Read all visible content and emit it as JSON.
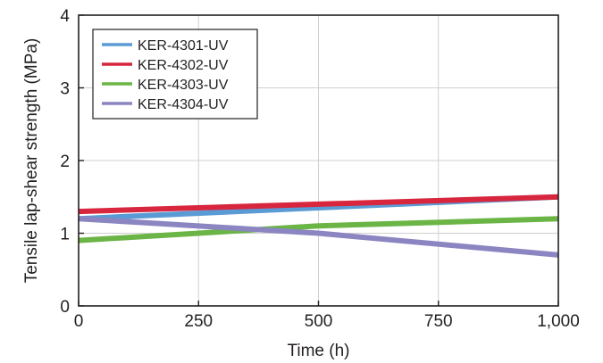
{
  "chart_data": {
    "type": "line",
    "xlabel": "Time (h)",
    "ylabel": "Tensile lap-shear strength (MPa)",
    "xlim": [
      0,
      1000
    ],
    "ylim": [
      0,
      4
    ],
    "xticks": [
      0,
      250,
      500,
      750,
      1000
    ],
    "xtick_labels": [
      "0",
      "250",
      "500",
      "750",
      "1,000"
    ],
    "yticks": [
      0,
      1,
      2,
      3,
      4
    ],
    "ytick_labels": [
      "0",
      "1",
      "2",
      "3",
      "4"
    ],
    "grid": true,
    "legend_position": "top-left",
    "series": [
      {
        "name": "KER-4301-UV",
        "color": "#5b9bd5",
        "x": [
          0,
          1000
        ],
        "y": [
          1.2,
          1.5
        ]
      },
      {
        "name": "KER-4302-UV",
        "color": "#d7263d",
        "x": [
          0,
          1000
        ],
        "y": [
          1.3,
          1.5
        ]
      },
      {
        "name": "KER-4303-UV",
        "color": "#6ab546",
        "x": [
          0,
          500,
          1000
        ],
        "y": [
          0.9,
          1.1,
          1.2
        ]
      },
      {
        "name": "KER-4304-UV",
        "color": "#8b85c1",
        "x": [
          0,
          500,
          1000
        ],
        "y": [
          1.2,
          1.0,
          0.7
        ]
      }
    ]
  }
}
